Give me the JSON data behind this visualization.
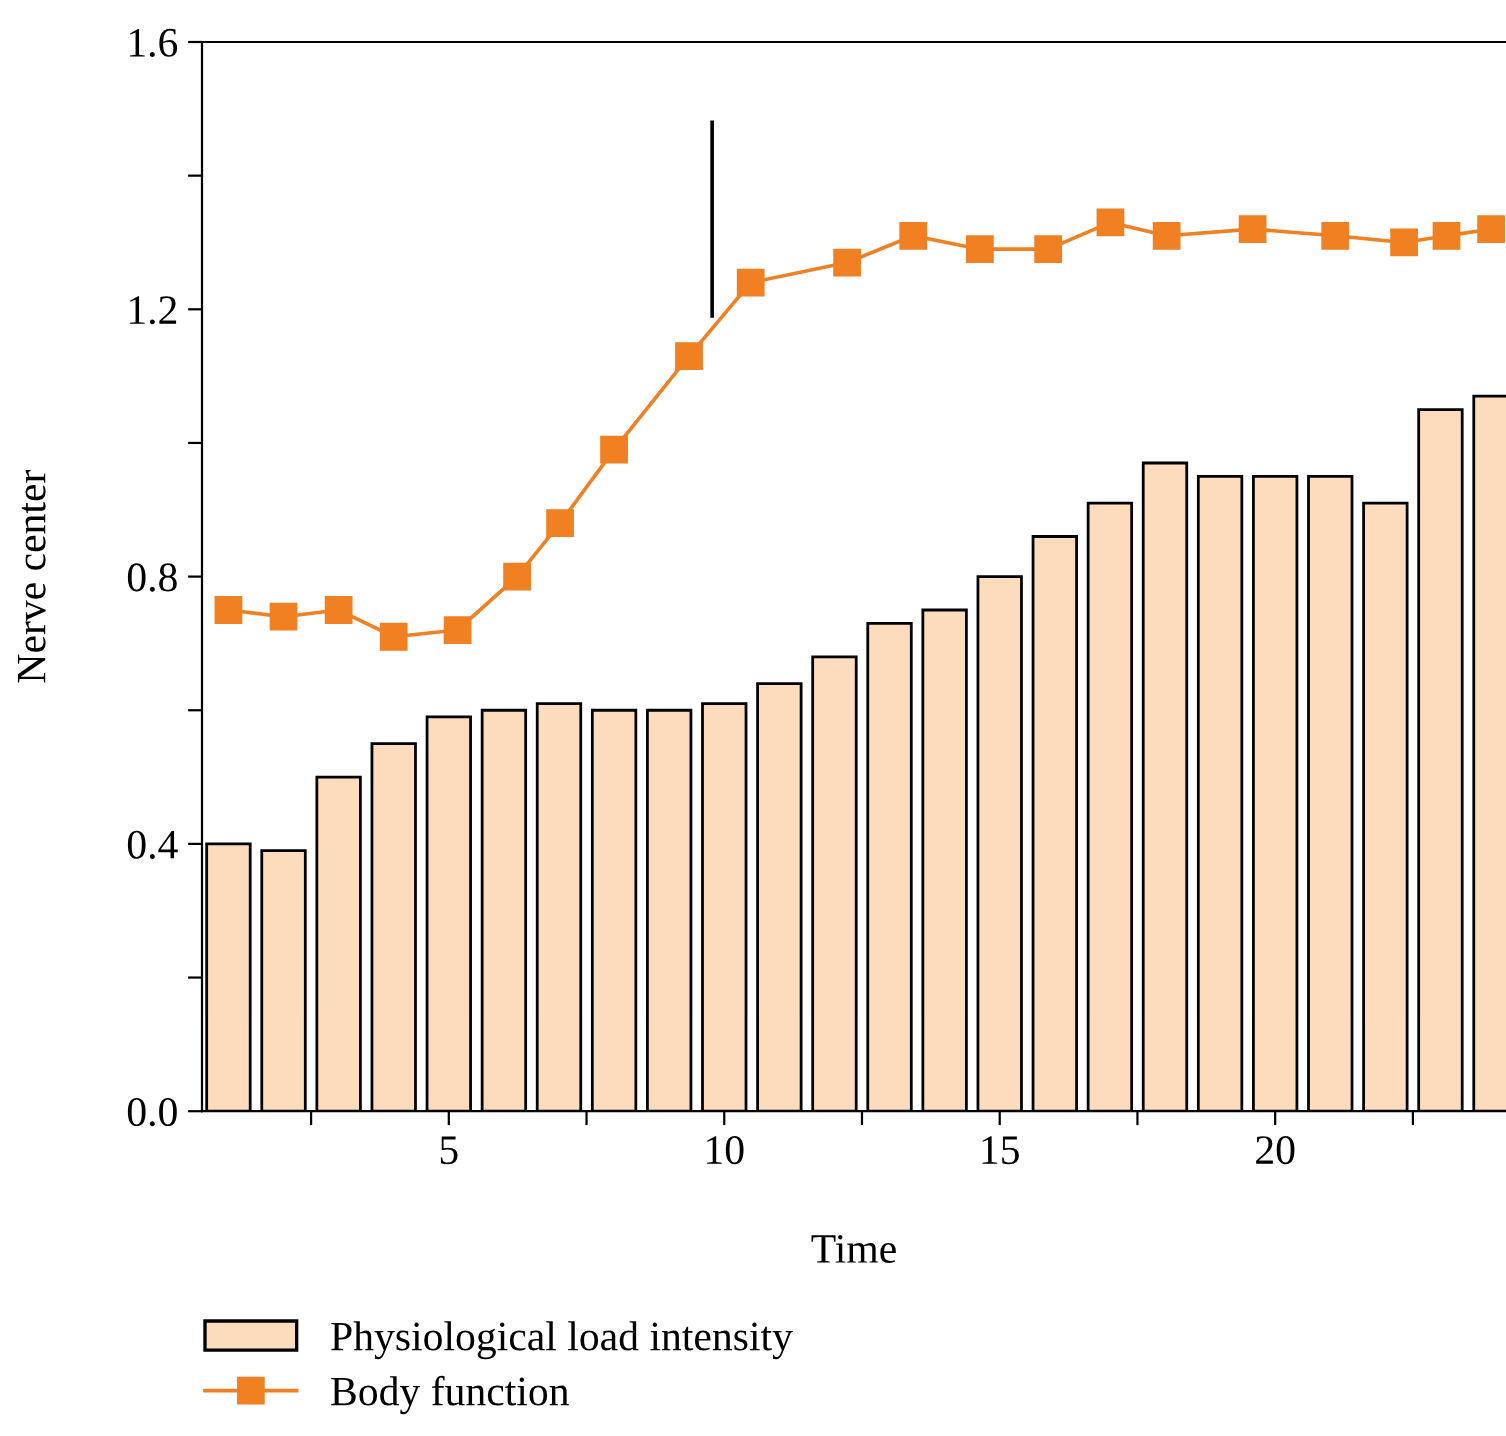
{
  "chart_data": {
    "type": "bar",
    "xlabel": "Time",
    "ylabel": "Nerve center",
    "xlim": [
      0.52,
      24.19
    ],
    "ylim": [
      0,
      1.6
    ],
    "xticks": [
      {
        "value": 2.5,
        "label": null
      },
      5,
      {
        "value": 7.5,
        "label": null
      },
      10,
      {
        "value": 12.5,
        "label": null
      },
      15,
      {
        "value": 17.5,
        "label": null
      },
      20,
      {
        "value": 22.5,
        "label": null
      }
    ],
    "yticks": [
      {
        "value": 0,
        "label": "0.0"
      },
      {
        "value": 0.2,
        "label": null
      },
      0.4,
      {
        "value": 0.6,
        "label": null
      },
      0.8,
      {
        "value": 1.0,
        "label": null
      },
      1.2,
      {
        "value": 1.4,
        "label": null
      },
      1.6
    ],
    "grid": false,
    "legend": "bottom left",
    "series": [
      {
        "name": "Physiological load intensity",
        "color": "#fddbbd",
        "x": [
          1,
          2,
          3,
          4,
          5,
          6,
          7,
          8,
          9,
          10,
          11,
          12,
          13,
          14,
          15,
          16,
          17,
          18,
          19,
          20,
          21,
          22,
          23,
          24
        ],
        "values": [
          0.4,
          0.39,
          0.5,
          0.55,
          0.59,
          0.6,
          0.61,
          0.6,
          0.6,
          0.61,
          0.64,
          0.68,
          0.73,
          0.75,
          0.8,
          0.86,
          0.91,
          0.97,
          0.95,
          0.95,
          0.95,
          0.91,
          1.05,
          1.07
        ]
      },
      {
        "name": "Body function",
        "type": "line",
        "color": "#f08022",
        "marker": "square",
        "x": [
          1,
          2,
          3,
          4,
          5.16,
          6.24,
          7.02,
          8.0,
          9.36,
          10.48,
          12.23,
          13.43,
          14.64,
          15.88,
          17.01,
          18.03,
          19.59,
          21.09,
          22.34,
          23.11,
          23.92
        ],
        "values": [
          0.75,
          0.74,
          0.75,
          0.71,
          0.72,
          0.8,
          0.88,
          0.99,
          1.13,
          1.24,
          1.27,
          1.31,
          1.29,
          1.29,
          1.33,
          1.31,
          1.32,
          1.31,
          1.3,
          1.31,
          1.32
        ]
      },
      {
        "type": "line",
        "color": "#000000",
        "marker": "none",
        "x": [
          9.78,
          9.78
        ],
        "values": [
          1.48,
          1.19
        ]
      }
    ]
  }
}
